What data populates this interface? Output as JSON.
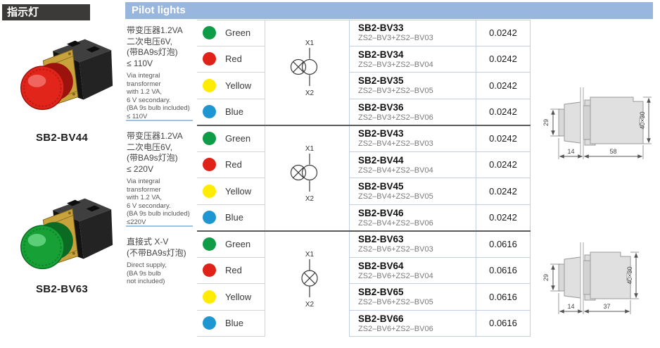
{
  "page": {
    "section_title_zh": "指示灯",
    "table_title": "Pilot lights"
  },
  "products": [
    {
      "label": "SB2-BV44",
      "lens_main": "#e2251a",
      "lens_dark": "#9c120c",
      "lens_light": "#f4776f"
    },
    {
      "label": "SB2-BV63",
      "lens_main": "#17a035",
      "lens_dark": "#0b6b22",
      "lens_light": "#6fd989"
    }
  ],
  "table": {
    "groups": [
      {
        "desc_zh": [
          "带变压器1.2VA",
          "二次电压6V,",
          "(带BA9s灯泡)",
          "≤ 110V"
        ],
        "desc_en": [
          "Via integral transformer",
          "with 1.2 VA,",
          "6 V secondary.",
          "(BA 9s bulb included)",
          "≤ 110V"
        ],
        "symbol": {
          "type": "transformer-lamp",
          "top_label": "X1",
          "bottom_label": "X2"
        },
        "rows": [
          {
            "color_name": "Green",
            "color_hex": "#0e9c47",
            "model": "SB2-BV33",
            "combo": "ZS2–BV3+ZS2–BV03",
            "weight": "0.0242"
          },
          {
            "color_name": "Red",
            "color_hex": "#e02318",
            "model": "SB2-BV34",
            "combo": "ZS2–BV3+ZS2–BV04",
            "weight": "0.0242"
          },
          {
            "color_name": "Yellow",
            "color_hex": "#ffec00",
            "model": "SB2-BV35",
            "combo": "ZS2–BV3+ZS2–BV05",
            "weight": "0.0242"
          },
          {
            "color_name": "Blue",
            "color_hex": "#1e96d2",
            "model": "SB2-BV36",
            "combo": "ZS2–BV3+ZS2–BV06",
            "weight": "0.0242"
          }
        ]
      },
      {
        "desc_zh": [
          "带变压器1.2VA",
          "二次电压6V,",
          "(带BA9s灯泡)",
          "≤ 220V"
        ],
        "desc_en": [
          "Via integral transformer",
          "with 1.2 VA,",
          "6 V secondary.",
          "(BA 9s bulb included)",
          "≤220V"
        ],
        "symbol": {
          "type": "transformer-lamp",
          "top_label": "X1",
          "bottom_label": "X2"
        },
        "rows": [
          {
            "color_name": "Green",
            "color_hex": "#0e9c47",
            "model": "SB2-BV43",
            "combo": "ZS2–BV4+ZS2–BV03",
            "weight": "0.0242"
          },
          {
            "color_name": "Red",
            "color_hex": "#e02318",
            "model": "SB2-BV44",
            "combo": "ZS2–BV4+ZS2–BV04",
            "weight": "0.0242"
          },
          {
            "color_name": "Yellow",
            "color_hex": "#ffec00",
            "model": "SB2-BV45",
            "combo": "ZS2–BV4+ZS2–BV05",
            "weight": "0.0242"
          },
          {
            "color_name": "Blue",
            "color_hex": "#1e96d2",
            "model": "SB2-BV46",
            "combo": "ZS2–BV4+ZS2–BV06",
            "weight": "0.0242"
          }
        ]
      },
      {
        "desc_zh": [
          "直接式 X-V",
          "(不带BA9s灯泡)"
        ],
        "desc_en": [
          "Direct supply,",
          "(BA 9s bulb",
          "not included)"
        ],
        "symbol": {
          "type": "lamp",
          "top_label": "X1",
          "bottom_label": "X2"
        },
        "rows": [
          {
            "color_name": "Green",
            "color_hex": "#0e9c47",
            "model": "SB2-BV63",
            "combo": "ZS2–BV6+ZS2–BV03",
            "weight": "0.0616"
          },
          {
            "color_name": "Red",
            "color_hex": "#e02318",
            "model": "SB2-BV64",
            "combo": "ZS2–BV6+ZS2–BV04",
            "weight": "0.0616"
          },
          {
            "color_name": "Yellow",
            "color_hex": "#ffec00",
            "model": "SB2-BV65",
            "combo": "ZS2–BV6+ZS2–BV05",
            "weight": "0.0616"
          },
          {
            "color_name": "Blue",
            "color_hex": "#1e96d2",
            "model": "SB2-BV66",
            "combo": "ZS2–BV6+ZS2–BV06",
            "weight": "0.0616"
          }
        ]
      }
    ]
  },
  "dimension_drawings": [
    {
      "height": "29",
      "lens_depth": "14",
      "body_depth": "58",
      "cross_section": "40×30"
    },
    {
      "height": "29",
      "lens_depth": "14",
      "body_depth": "37",
      "cross_section": "40×30"
    }
  ],
  "theme": {
    "table_title_bg": "#99b6de",
    "section_title_bg": "#3c3a39",
    "group_separator": "#5a5a5a",
    "cell_border_blue": "#c2cfe0",
    "cell_border_gray": "#d4d4d4",
    "desc_divider": "#9cc3e4",
    "photo": {
      "body_top": "#3f3f3f",
      "body_right": "#232323",
      "body_front": "#131313",
      "tab": "#0d0d0d",
      "gold": "#c8a33c",
      "gold_dark": "#7f651f"
    }
  }
}
